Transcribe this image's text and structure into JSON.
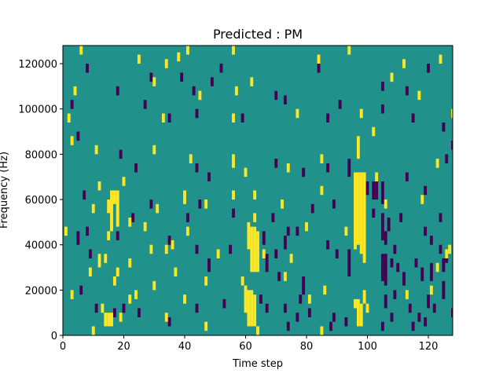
{
  "chart_data": {
    "type": "heatmap",
    "title": "Predicted : PM",
    "xlabel": "Time step",
    "ylabel": "Frequency (Hz)",
    "xlim": [
      0,
      128
    ],
    "ylim": [
      0,
      128000
    ],
    "x_ticks": [
      0,
      20,
      40,
      60,
      80,
      100,
      120
    ],
    "x_tick_labels": [
      "0",
      "20",
      "40",
      "60",
      "80",
      "100",
      "120"
    ],
    "y_ticks": [
      0,
      20000,
      40000,
      60000,
      80000,
      100000,
      120000
    ],
    "y_tick_labels": [
      "0",
      "20000",
      "40000",
      "60000",
      "80000",
      "100000",
      "120000"
    ],
    "n_time_steps": 128,
    "n_freq_bins": 128,
    "freq_bin_width_hz": 1000,
    "colormap": "viridis",
    "colors": {
      "low": "#440154",
      "background": "#21918c",
      "high": "#fde725"
    },
    "background_value": 0,
    "low_value": -1,
    "high_value": 1,
    "high_cells": [
      [
        6,
        124,
        127
      ],
      [
        25,
        120,
        123
      ],
      [
        34,
        118,
        121
      ],
      [
        38,
        121,
        124
      ],
      [
        41,
        124,
        127
      ],
      [
        56,
        124,
        127
      ],
      [
        84,
        120,
        123
      ],
      [
        94,
        124,
        127
      ],
      [
        4,
        106,
        109
      ],
      [
        30,
        110,
        113
      ],
      [
        45,
        104,
        107
      ],
      [
        57,
        106,
        109
      ],
      [
        62,
        110,
        113
      ],
      [
        108,
        112,
        115
      ],
      [
        112,
        118,
        121
      ],
      [
        124,
        120,
        123
      ],
      [
        2,
        94,
        97
      ],
      [
        33,
        94,
        97
      ],
      [
        56,
        94,
        97
      ],
      [
        77,
        96,
        99
      ],
      [
        98,
        96,
        99
      ],
      [
        102,
        88,
        91
      ],
      [
        117,
        104,
        107
      ],
      [
        128,
        96,
        99
      ],
      [
        3,
        84,
        87
      ],
      [
        11,
        80,
        83
      ],
      [
        30,
        80,
        83
      ],
      [
        42,
        76,
        79
      ],
      [
        56,
        74,
        79
      ],
      [
        85,
        76,
        79
      ],
      [
        97,
        78,
        87
      ],
      [
        123,
        74,
        77
      ],
      [
        12,
        64,
        67
      ],
      [
        20,
        66,
        69
      ],
      [
        40,
        58,
        63
      ],
      [
        56,
        60,
        63
      ],
      [
        63,
        60,
        63
      ],
      [
        74,
        72,
        75
      ],
      [
        85,
        62,
        65
      ],
      [
        103,
        68,
        71
      ],
      [
        10,
        54,
        57
      ],
      [
        16,
        46,
        63
      ],
      [
        18,
        48,
        63
      ],
      [
        22,
        48,
        51
      ],
      [
        31,
        54,
        57
      ],
      [
        47,
        56,
        59
      ],
      [
        63,
        50,
        53
      ],
      [
        72,
        56,
        59
      ],
      [
        1,
        44,
        47
      ],
      [
        15,
        42,
        45
      ],
      [
        27,
        46,
        49
      ],
      [
        41,
        44,
        47
      ],
      [
        61,
        38,
        49
      ],
      [
        62,
        28,
        47
      ],
      [
        63,
        28,
        47
      ],
      [
        64,
        28,
        45
      ],
      [
        80,
        46,
        49
      ],
      [
        93,
        44,
        47
      ],
      [
        96,
        38,
        71
      ],
      [
        97,
        40,
        71
      ],
      [
        98,
        36,
        71
      ],
      [
        99,
        32,
        71
      ],
      [
        106,
        56,
        59
      ],
      [
        118,
        58,
        61
      ],
      [
        12,
        30,
        35
      ],
      [
        18,
        26,
        29
      ],
      [
        22,
        30,
        33
      ],
      [
        29,
        36,
        39
      ],
      [
        36,
        38,
        41
      ],
      [
        51,
        34,
        37
      ],
      [
        66,
        34,
        37
      ],
      [
        75,
        32,
        35
      ],
      [
        9,
        26,
        29
      ],
      [
        14,
        32,
        35
      ],
      [
        17,
        22,
        25
      ],
      [
        30,
        20,
        23
      ],
      [
        37,
        26,
        29
      ],
      [
        47,
        22,
        25
      ],
      [
        59,
        22,
        25
      ],
      [
        73,
        24,
        27
      ],
      [
        3,
        16,
        19
      ],
      [
        13,
        10,
        13
      ],
      [
        14,
        4,
        9
      ],
      [
        15,
        4,
        9
      ],
      [
        16,
        4,
        9
      ],
      [
        19,
        6,
        9
      ],
      [
        24,
        16,
        19
      ],
      [
        34,
        6,
        9
      ],
      [
        40,
        14,
        17
      ],
      [
        60,
        10,
        21
      ],
      [
        61,
        4,
        19
      ],
      [
        62,
        4,
        19
      ],
      [
        63,
        4,
        17
      ],
      [
        81,
        14,
        17
      ],
      [
        86,
        18,
        21
      ],
      [
        96,
        12,
        15
      ],
      [
        97,
        4,
        15
      ],
      [
        98,
        4,
        13
      ],
      [
        100,
        10,
        13
      ],
      [
        113,
        16,
        19
      ],
      [
        121,
        18,
        21
      ],
      [
        123,
        28,
        31
      ],
      [
        126,
        34,
        37
      ],
      [
        127,
        36,
        39
      ],
      [
        10,
        0,
        3
      ],
      [
        22,
        14,
        17
      ],
      [
        47,
        2,
        5
      ],
      [
        64,
        0,
        3
      ],
      [
        85,
        0,
        3
      ],
      [
        99,
        14,
        19
      ],
      [
        60,
        70,
        73
      ],
      [
        34,
        36,
        39
      ],
      [
        15,
        54,
        59
      ],
      [
        17,
        58,
        63
      ]
    ],
    "low_cells": [
      [
        8,
        116,
        119
      ],
      [
        18,
        106,
        109
      ],
      [
        29,
        112,
        115
      ],
      [
        39,
        112,
        115
      ],
      [
        43,
        106,
        109
      ],
      [
        49,
        110,
        113
      ],
      [
        52,
        116,
        119
      ],
      [
        73,
        102,
        105
      ],
      [
        84,
        116,
        119
      ],
      [
        91,
        100,
        103
      ],
      [
        105,
        108,
        111
      ],
      [
        120,
        116,
        119
      ],
      [
        3,
        100,
        103
      ],
      [
        27,
        100,
        103
      ],
      [
        35,
        94,
        97
      ],
      [
        44,
        96,
        99
      ],
      [
        59,
        94,
        97
      ],
      [
        70,
        104,
        107
      ],
      [
        87,
        94,
        97
      ],
      [
        105,
        98,
        101
      ],
      [
        113,
        106,
        109
      ],
      [
        115,
        94,
        97
      ],
      [
        125,
        90,
        93
      ],
      [
        128,
        82,
        85
      ],
      [
        5,
        86,
        89
      ],
      [
        19,
        78,
        81
      ],
      [
        24,
        72,
        75
      ],
      [
        44,
        72,
        75
      ],
      [
        48,
        68,
        71
      ],
      [
        70,
        74,
        77
      ],
      [
        79,
        70,
        73
      ],
      [
        87,
        72,
        75
      ],
      [
        94,
        70,
        77
      ],
      [
        100,
        62,
        67
      ],
      [
        102,
        60,
        67
      ],
      [
        103,
        60,
        67
      ],
      [
        105,
        58,
        67
      ],
      [
        113,
        68,
        71
      ],
      [
        119,
        62,
        65
      ],
      [
        126,
        76,
        79
      ],
      [
        7,
        60,
        63
      ],
      [
        23,
        50,
        53
      ],
      [
        29,
        56,
        59
      ],
      [
        45,
        56,
        59
      ],
      [
        56,
        52,
        55
      ],
      [
        69,
        50,
        53
      ],
      [
        82,
        54,
        57
      ],
      [
        89,
        56,
        59
      ],
      [
        105,
        42,
        53
      ],
      [
        106,
        40,
        45
      ],
      [
        107,
        46,
        51
      ],
      [
        111,
        50,
        53
      ],
      [
        119,
        44,
        47
      ],
      [
        121,
        40,
        43
      ],
      [
        124,
        50,
        53
      ],
      [
        5,
        40,
        45
      ],
      [
        9,
        34,
        37
      ],
      [
        18,
        42,
        45
      ],
      [
        35,
        40,
        43
      ],
      [
        44,
        36,
        39
      ],
      [
        48,
        28,
        33
      ],
      [
        55,
        36,
        39
      ],
      [
        66,
        40,
        45
      ],
      [
        67,
        28,
        35
      ],
      [
        70,
        34,
        37
      ],
      [
        73,
        38,
        43
      ],
      [
        74,
        44,
        47
      ],
      [
        77,
        44,
        47
      ],
      [
        87,
        38,
        41
      ],
      [
        90,
        34,
        37
      ],
      [
        94,
        26,
        37
      ],
      [
        105,
        24,
        35
      ],
      [
        106,
        22,
        35
      ],
      [
        112,
        22,
        27
      ],
      [
        116,
        30,
        33
      ],
      [
        118,
        24,
        29
      ],
      [
        121,
        24,
        31
      ],
      [
        125,
        28,
        33
      ],
      [
        126,
        32,
        35
      ],
      [
        6,
        18,
        21
      ],
      [
        11,
        10,
        13
      ],
      [
        17,
        8,
        11
      ],
      [
        20,
        10,
        13
      ],
      [
        25,
        8,
        11
      ],
      [
        35,
        4,
        7
      ],
      [
        44,
        10,
        13
      ],
      [
        53,
        12,
        15
      ],
      [
        65,
        14,
        17
      ],
      [
        67,
        10,
        13
      ],
      [
        71,
        24,
        27
      ],
      [
        73,
        10,
        13
      ],
      [
        74,
        2,
        5
      ],
      [
        77,
        6,
        9
      ],
      [
        78,
        14,
        17
      ],
      [
        79,
        18,
        25
      ],
      [
        81,
        8,
        11
      ],
      [
        88,
        2,
        5
      ],
      [
        89,
        6,
        9
      ],
      [
        106,
        12,
        17
      ],
      [
        108,
        6,
        9
      ],
      [
        109,
        16,
        19
      ],
      [
        114,
        10,
        13
      ],
      [
        117,
        6,
        9
      ],
      [
        119,
        4,
        7
      ],
      [
        120,
        12,
        17
      ],
      [
        122,
        10,
        13
      ],
      [
        125,
        16,
        23
      ],
      [
        128,
        8,
        11
      ],
      [
        105,
        2,
        5
      ],
      [
        115,
        2,
        5
      ],
      [
        93,
        4,
        7
      ],
      [
        97,
        8,
        11
      ],
      [
        110,
        28,
        31
      ],
      [
        124,
        36,
        39
      ],
      [
        102,
        52,
        55
      ],
      [
        108,
        30,
        33
      ],
      [
        109,
        36,
        39
      ],
      [
        41,
        50,
        53
      ],
      [
        8,
        44,
        47
      ]
    ]
  }
}
